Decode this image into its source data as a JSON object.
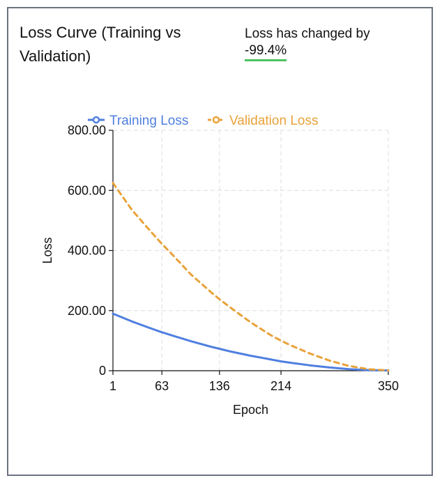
{
  "header": {
    "title": "Loss Curve (Training vs Validation)",
    "change_label": "Loss has changed by",
    "change_value": "-99.4%"
  },
  "colors": {
    "training": "#4f7fe0",
    "validation": "#e8a23a",
    "underline": "#4cc35e",
    "grid": "#e3e3e3"
  },
  "chart_data": {
    "type": "line",
    "title": "",
    "xlabel": "Epoch",
    "ylabel": "Loss",
    "xlim": [
      1,
      350
    ],
    "ylim": [
      0,
      800
    ],
    "x_ticks": [
      1,
      63,
      136,
      214,
      350
    ],
    "y_ticks": [
      0,
      200,
      400,
      600,
      800
    ],
    "y_tick_labels": [
      "0",
      "200.00",
      "400.00",
      "600.00",
      "800.00"
    ],
    "grid": true,
    "legend": "top",
    "series": [
      {
        "name": "Training Loss",
        "style": "solid",
        "x": [
          1,
          25,
          50,
          63,
          75,
          100,
          125,
          136,
          150,
          175,
          200,
          214,
          225,
          250,
          275,
          300,
          325,
          350
        ],
        "values": [
          190,
          164,
          140,
          128,
          118,
          98,
          80,
          73,
          64,
          50,
          38,
          31,
          27,
          18,
          11,
          5,
          2,
          1
        ]
      },
      {
        "name": "Validation Loss",
        "style": "dashed",
        "x": [
          1,
          25,
          50,
          63,
          75,
          100,
          125,
          136,
          150,
          175,
          200,
          214,
          225,
          250,
          275,
          300,
          325,
          350
        ],
        "values": [
          625,
          535,
          460,
          422,
          390,
          320,
          262,
          238,
          210,
          162,
          120,
          100,
          86,
          58,
          34,
          16,
          5,
          1
        ]
      }
    ]
  }
}
